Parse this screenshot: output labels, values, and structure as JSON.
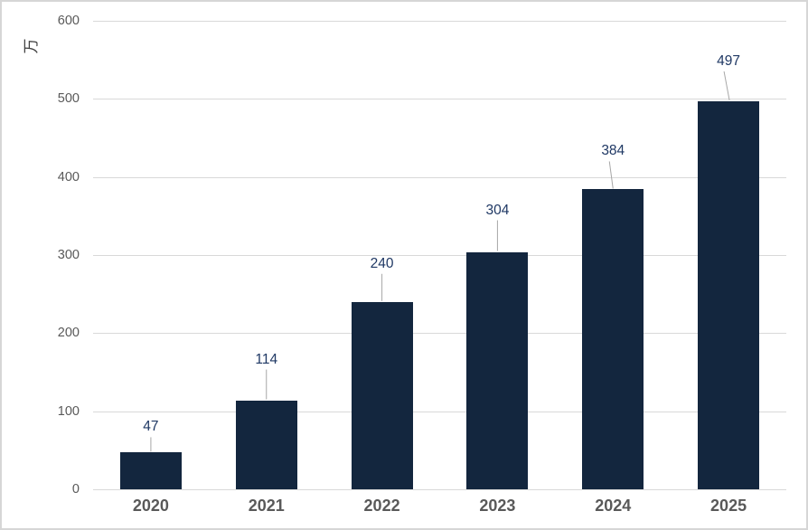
{
  "chart_data": {
    "type": "bar",
    "title": "",
    "xlabel": "",
    "ylabel": "万",
    "categories": [
      "2020",
      "2021",
      "2022",
      "2023",
      "2024",
      "2025"
    ],
    "values": [
      47,
      114,
      240,
      304,
      384,
      497
    ],
    "data_labels": [
      "47",
      "114",
      "240",
      "304",
      "384",
      "497"
    ],
    "ylim": [
      0,
      600
    ],
    "yticks": [
      0,
      100,
      200,
      300,
      400,
      500,
      600
    ],
    "ytick_labels": [
      "0",
      "100",
      "200",
      "300",
      "400",
      "500",
      "600"
    ],
    "grid": true,
    "legend": false,
    "colors": {
      "bar": "#13263e",
      "data_label": "#1f3864",
      "axis_label": "#595959",
      "gridline": "#d9d9d9",
      "leader_line": "#a6a6a6",
      "axis_title": "#404040",
      "border": "#d6d6d6",
      "background": "#ffffff"
    }
  }
}
